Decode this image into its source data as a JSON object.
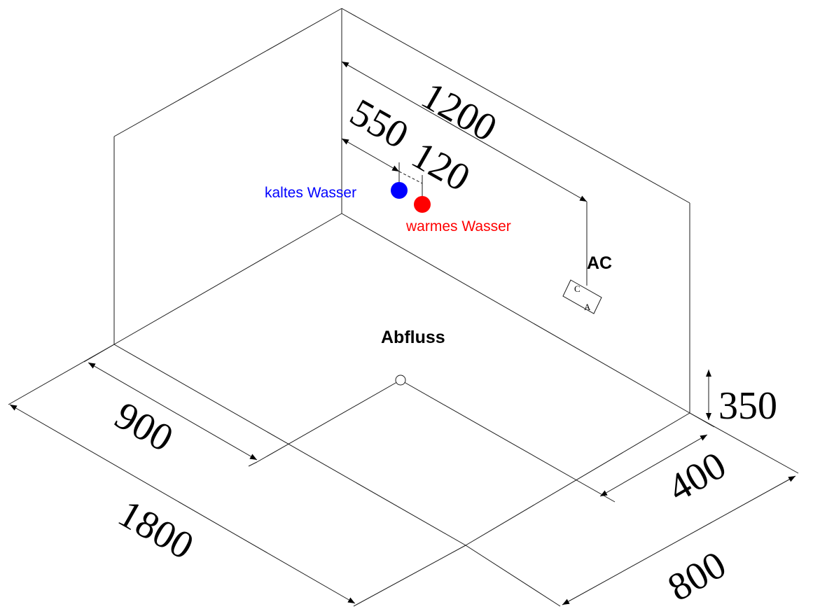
{
  "dimensions": {
    "width_1200": "1200",
    "d_550": "550",
    "d_120": "120",
    "height_350": "350",
    "d_400": "400",
    "d_900": "900",
    "length_1800": "1800",
    "depth_800": "800"
  },
  "labels": {
    "cold_water": "kaltes Wasser",
    "warm_water": "warmes Wasser",
    "ac": "AC",
    "drain": "Abfluss",
    "box_c": "C",
    "box_a": "A"
  },
  "colors": {
    "cold_water": "#0000ff",
    "warm_water": "#ff0000",
    "line": "#1a1a1a"
  }
}
